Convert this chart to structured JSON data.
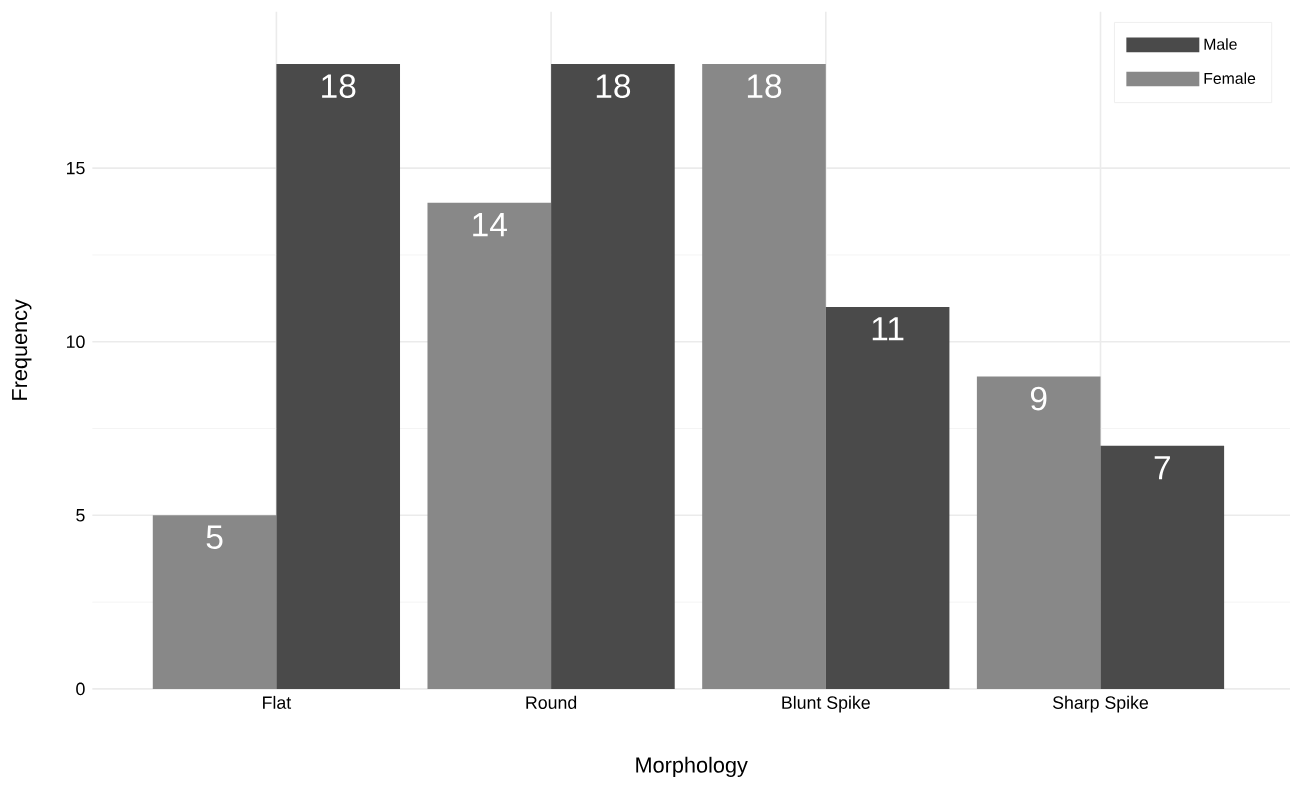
{
  "chart_data": {
    "type": "bar",
    "xlabel": "Morphology",
    "ylabel": "Frequency",
    "categories": [
      "Flat",
      "Round",
      "Blunt Spike",
      "Sharp Spike"
    ],
    "series": [
      {
        "name": "Female",
        "color": "#888888",
        "values": [
          5,
          14,
          18,
          9
        ]
      },
      {
        "name": "Male",
        "color": "#4a4a4a",
        "values": [
          18,
          18,
          11,
          7
        ]
      }
    ],
    "ylim": [
      0,
      19.5
    ],
    "yticks": [
      0,
      5,
      10,
      15
    ],
    "grid": true,
    "legend": "top right",
    "data_labels": true
  }
}
